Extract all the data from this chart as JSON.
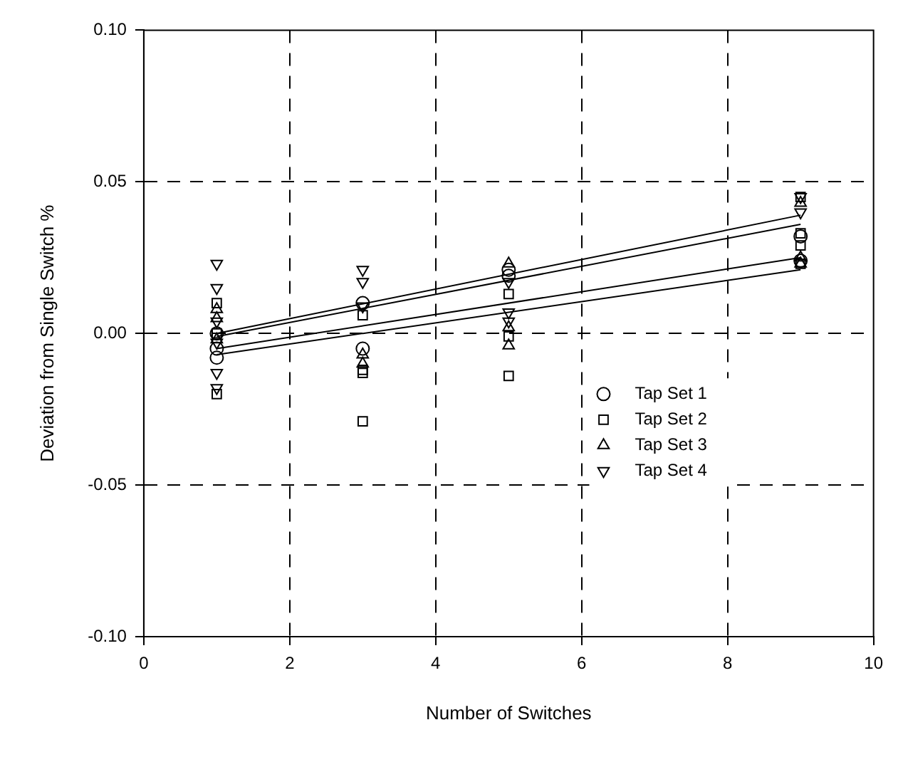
{
  "chart_data": {
    "type": "scatter",
    "xlabel": "Number of Switches",
    "ylabel": "Deviation from Single Switch %",
    "xlim": [
      0,
      10
    ],
    "xticks": [
      0,
      2,
      4,
      6,
      8,
      10
    ],
    "ylim": [
      -0.1,
      0.1
    ],
    "yticks": [
      {
        "value": -0.1,
        "label": "-0.10"
      },
      {
        "value": -0.05,
        "label": "-0.05"
      },
      {
        "value": 0,
        "label": "0.00"
      },
      {
        "value": 0.05,
        "label": "0.05"
      },
      {
        "value": 0.1,
        "label": "0.10"
      }
    ],
    "grid": true,
    "legend": "bottom right",
    "series": [
      {
        "name": "Tap Set 1",
        "color": "#000000",
        "marker": "circle",
        "x": [
          1,
          1,
          1,
          3,
          3,
          5,
          5,
          9,
          9
        ],
        "values": [
          -0.005,
          -0.008,
          0.0,
          0.01,
          -0.005,
          0.021,
          0.019,
          0.032,
          0.024
        ]
      },
      {
        "name": "Tap Set 2",
        "color": "#000000",
        "marker": "square",
        "x": [
          1,
          1,
          1,
          3,
          3,
          3,
          3,
          5,
          5,
          5,
          9,
          9,
          9,
          9
        ],
        "values": [
          0.01,
          0.0,
          -0.02,
          0.006,
          -0.012,
          -0.013,
          -0.029,
          0.013,
          -0.001,
          -0.014,
          0.045,
          0.033,
          0.029,
          0.023
        ]
      },
      {
        "name": "Tap Set 3",
        "color": "#000000",
        "marker": "triangle",
        "x": [
          1,
          1,
          1,
          3,
          3,
          5,
          5,
          5,
          9,
          9,
          9
        ],
        "values": [
          0.008,
          0.005,
          -0.002,
          -0.007,
          -0.01,
          0.023,
          0.002,
          -0.004,
          0.043,
          0.025,
          0.023
        ]
      },
      {
        "name": "Tap Set 4",
        "color": "#000000",
        "marker": "triangle_down",
        "x": [
          1,
          1,
          1,
          1,
          1,
          1,
          3,
          3,
          3,
          5,
          5,
          5,
          9,
          9
        ],
        "values": [
          0.023,
          0.015,
          0.004,
          -0.003,
          -0.013,
          -0.018,
          0.021,
          0.017,
          0.009,
          0.017,
          0.007,
          0.004,
          0.045,
          0.04
        ]
      },
      {
        "type": "line",
        "color": "#000000",
        "marker": "none",
        "x": [
          1,
          9
        ],
        "values": [
          0.0,
          0.039
        ]
      },
      {
        "type": "line",
        "color": "#000000",
        "marker": "none",
        "x": [
          1,
          9
        ],
        "values": [
          -0.001,
          0.036
        ]
      },
      {
        "type": "line",
        "color": "#000000",
        "marker": "none",
        "x": [
          1,
          9
        ],
        "values": [
          -0.005,
          0.025
        ]
      },
      {
        "type": "line",
        "color": "#000000",
        "marker": "none",
        "x": [
          1,
          9
        ],
        "values": [
          -0.007,
          0.021
        ]
      }
    ]
  }
}
